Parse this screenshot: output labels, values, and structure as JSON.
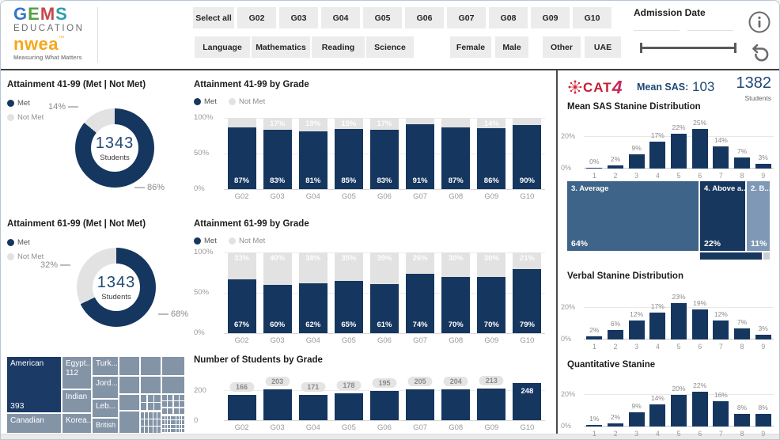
{
  "colors": {
    "navy": "#15365f",
    "bar_gray": "#e2e2e2",
    "slate": "#8494a7",
    "tm_dark": "#1b3a66",
    "tm_average": "#3e6489",
    "tm_above": "#17375f",
    "tm_below": "#7e98b6",
    "tm_small_light": "#c9cfd6",
    "accent_red": "#c42034"
  },
  "header": {
    "logo": {
      "letters": [
        "G",
        "E",
        "M",
        "S"
      ],
      "education": "EDUCATION",
      "nwea": "nwea",
      "nwea_tm": "™",
      "tagline": "Measuring What Matters"
    },
    "filters_row1": [
      "Select all",
      "G02",
      "G03",
      "G04",
      "G05",
      "G06",
      "G07",
      "G08",
      "G09",
      "G10"
    ],
    "filters_row2": [
      "Language",
      "Mathematics",
      "Reading",
      "Science",
      "Female",
      "Male",
      "Other",
      "UAE"
    ],
    "admission_label": "Admission Date"
  },
  "right_header": {
    "cat4": "CAT",
    "cat4_4": "4",
    "mean_sas_label": "Mean SAS:",
    "mean_sas_value": "103",
    "students_value": "1382",
    "students_label": "Students"
  },
  "chart_data": [
    {
      "id": "att41-donut",
      "type": "pie",
      "title": "Attainment 41-99 (Met | Not Met)",
      "legend": [
        "Met",
        "Not Met"
      ],
      "labels": [
        "Met",
        "Not Met"
      ],
      "values": [
        86,
        14
      ],
      "value_labels": [
        "86%",
        "14%"
      ],
      "center_value": "1343",
      "center_label": "Students"
    },
    {
      "id": "att61-donut",
      "type": "pie",
      "title": "Attainment 61-99 (Met | Not Met)",
      "legend": [
        "Met",
        "Not Met"
      ],
      "labels": [
        "Met",
        "Not Met"
      ],
      "values": [
        68,
        32
      ],
      "value_labels": [
        "68%",
        "32%"
      ],
      "center_value": "1343",
      "center_label": "Students"
    },
    {
      "id": "nationality-treemap",
      "type": "treemap",
      "items": [
        {
          "label": "American",
          "value": "393"
        },
        {
          "label": "Canadian",
          "value": null
        },
        {
          "label": "Egypt...",
          "value": "112"
        },
        {
          "label": "Indian",
          "value": null
        },
        {
          "label": "Korea...",
          "value": null
        },
        {
          "label": "Turk...",
          "value": null
        },
        {
          "label": "Jord...",
          "value": null
        },
        {
          "label": "Leb...",
          "value": null
        },
        {
          "label": "British",
          "value": null
        }
      ]
    },
    {
      "id": "att41-by-grade",
      "type": "bar",
      "stacked": true,
      "title": "Attainment 41-99 by Grade",
      "legend": [
        "Met",
        "Not Met"
      ],
      "categories": [
        "G02",
        "G03",
        "G04",
        "G05",
        "G06",
        "G07",
        "G08",
        "G09",
        "G10"
      ],
      "series": [
        {
          "name": "Met",
          "values": [
            87,
            83,
            81,
            85,
            83,
            91,
            87,
            86,
            90
          ]
        },
        {
          "name": "Not Met",
          "values": [
            13,
            17,
            19,
            15,
            17,
            9,
            13,
            14,
            10
          ]
        }
      ],
      "not_met_shown": [
        null,
        "17%",
        "19%",
        "15%",
        "17%",
        null,
        null,
        "14%",
        null
      ],
      "yticks": [
        "100%",
        "50%",
        "0%"
      ],
      "ylim": [
        0,
        100
      ],
      "xlabel": "",
      "ylabel": ""
    },
    {
      "id": "att61-by-grade",
      "type": "bar",
      "stacked": true,
      "title": "Attainment 61-99 by Grade",
      "legend": [
        "Met",
        "Not Met"
      ],
      "categories": [
        "G02",
        "G03",
        "G04",
        "G05",
        "G06",
        "G07",
        "G08",
        "G09",
        "G10"
      ],
      "series": [
        {
          "name": "Met",
          "values": [
            67,
            60,
            62,
            65,
            61,
            74,
            70,
            70,
            79
          ]
        },
        {
          "name": "Not Met",
          "values": [
            33,
            40,
            38,
            35,
            39,
            26,
            30,
            30,
            21
          ]
        }
      ],
      "not_met_shown": [
        "33%",
        "40%",
        "38%",
        "35%",
        "39%",
        "26%",
        "30%",
        "30%",
        "21%"
      ],
      "yticks": [
        "100%",
        "50%",
        "0%"
      ],
      "ylim": [
        0,
        100
      ],
      "xlabel": "",
      "ylabel": ""
    },
    {
      "id": "students-by-grade",
      "type": "bar",
      "title": "Number of Students by Grade",
      "categories": [
        "G02",
        "G03",
        "G04",
        "G05",
        "G06",
        "G07",
        "G08",
        "G09",
        "G10"
      ],
      "values": [
        166,
        203,
        171,
        178,
        195,
        205,
        204,
        213,
        248
      ],
      "yticks": [
        "200",
        "0"
      ],
      "ylim": [
        0,
        250
      ],
      "xlabel": "",
      "ylabel": ""
    },
    {
      "id": "mean-sas-stanine",
      "type": "bar",
      "title": "Mean SAS Stanine Distribution",
      "categories": [
        "1",
        "2",
        "3",
        "4",
        "5",
        "6",
        "7",
        "8",
        "9"
      ],
      "values": [
        0,
        2,
        9,
        17,
        22,
        25,
        14,
        7,
        3
      ],
      "yticks": [
        "20%",
        "0%"
      ],
      "ylim": [
        0,
        27
      ],
      "xlabel": "",
      "ylabel": ""
    },
    {
      "id": "stanine-treemap",
      "type": "treemap",
      "items": [
        {
          "label": "3. Average",
          "value": "64%"
        },
        {
          "label": "4. Above a...",
          "value": "22%"
        },
        {
          "label": "2. B...",
          "value": "11%"
        }
      ]
    },
    {
      "id": "verbal-stanine",
      "type": "bar",
      "title": "Verbal Stanine Distribution",
      "categories": [
        "1",
        "2",
        "3",
        "4",
        "5",
        "6",
        "7",
        "8",
        "9"
      ],
      "values": [
        2,
        6,
        12,
        17,
        23,
        19,
        12,
        7,
        3
      ],
      "yticks": [
        "20%",
        "0%"
      ],
      "ylim": [
        0,
        27
      ],
      "xlabel": "",
      "ylabel": ""
    },
    {
      "id": "quant-stanine",
      "type": "bar",
      "title": "Quantitative Stanine",
      "categories": [
        "1",
        "2",
        "3",
        "4",
        "5",
        "6",
        "7",
        "8",
        "9"
      ],
      "values": [
        1,
        2,
        9,
        14,
        20,
        22,
        16,
        8,
        8
      ],
      "yticks": [
        "20%",
        "0%"
      ],
      "ylim": [
        0,
        27
      ],
      "xlabel": "",
      "ylabel": ""
    }
  ]
}
